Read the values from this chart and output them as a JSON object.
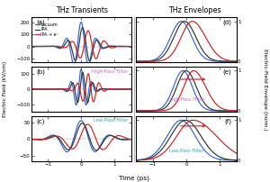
{
  "title_left": "THz Transients",
  "title_right": "THz Envelopes",
  "xlabel": "Time (ps)",
  "ylabel_left": "Electric Field (kV/cm)",
  "ylabel_right": "Electric-Field Envelope (norm.)",
  "colors": {
    "vacuum": "#3366cc",
    "ipa": "#333333",
    "ipa_e": "#cc2222"
  },
  "legend_labels": [
    "Vacuum",
    "IPA",
    "IPA + e⁻"
  ],
  "panel_labels": [
    "(a)",
    "(b)",
    "(c)",
    "(d)",
    "(e)",
    "(f)"
  ],
  "filter_label_b": "High-Pass Filter",
  "filter_label_c": "Low-Pass Filter",
  "filter_color_b": "#cc66cc",
  "filter_color_c": "#33aaaa",
  "background_color": "#ffffff"
}
